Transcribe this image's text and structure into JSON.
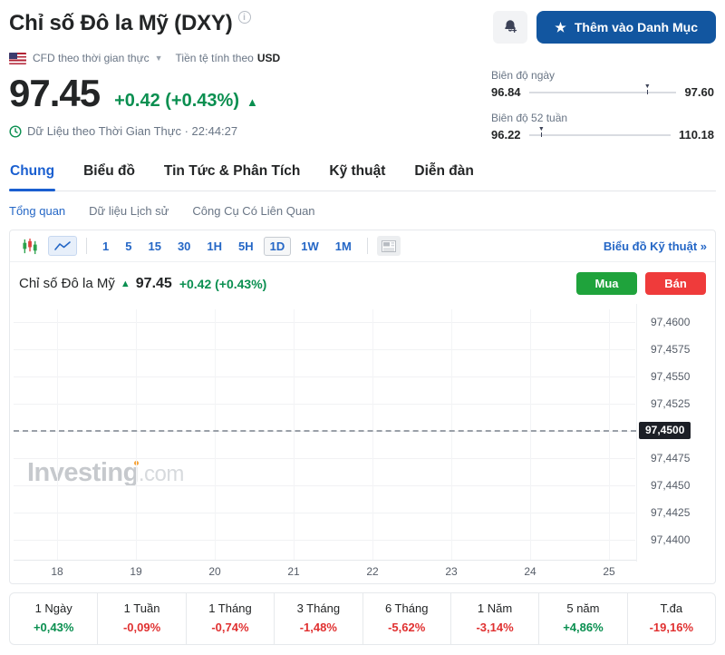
{
  "header": {
    "title": "Chỉ số Đô la Mỹ (DXY)",
    "info_icon_glyph": "ⓘ",
    "market_label": "CFD theo thời gian thực",
    "currency_prefix": "Tiền tệ tính theo",
    "currency": "USD",
    "price": "97.45",
    "change": "+0.42 (+0.43%)",
    "up_arrow": "▲",
    "realtime_label": "Dữ Liệu theo Thời Gian Thực · 22:44:27",
    "watchlist_button": "Thêm vào Danh Mục",
    "star_glyph": "★",
    "ranges": [
      {
        "label": "Biên độ ngày",
        "low": "96.84",
        "high": "97.60",
        "low_v": 96.84,
        "high_v": 97.6,
        "current_v": 97.45
      },
      {
        "label": "Biên độ 52 tuần",
        "low": "96.22",
        "high": "110.18",
        "low_v": 96.22,
        "high_v": 110.18,
        "current_v": 97.45
      }
    ],
    "colors": {
      "up": "#0a8f50",
      "down": "#e03131",
      "accent": "#1256a0",
      "link": "#2567c6"
    }
  },
  "tabs": [
    {
      "label": "Chung",
      "active": true
    },
    {
      "label": "Biểu đồ",
      "active": false
    },
    {
      "label": "Tin Tức & Phân Tích",
      "active": false
    },
    {
      "label": "Kỹ thuật",
      "active": false
    },
    {
      "label": "Diễn đàn",
      "active": false
    }
  ],
  "subtabs": [
    {
      "label": "Tổng quan",
      "active": true
    },
    {
      "label": "Dữ liệu Lịch sử",
      "active": false
    },
    {
      "label": "Công Cụ Có Liên Quan",
      "active": false
    }
  ],
  "chart_toolbar": {
    "intervals": [
      "1",
      "5",
      "15",
      "30",
      "1H",
      "5H",
      "1D",
      "1W",
      "1M"
    ],
    "selected_interval": "1D",
    "technical_link": "Biểu đồ Kỹ thuật »"
  },
  "chart_header": {
    "name": "Chỉ số Đô la Mỹ",
    "arrow": "▲",
    "price": "97.45",
    "change": "+0.42 (+0.43%)",
    "buy_label": "Mua",
    "sell_label": "Bán"
  },
  "watermark": {
    "main": "Investing",
    "suffix": ".com"
  },
  "chart_data": {
    "type": "line",
    "title": "Chỉ số Đô la Mỹ (DXY) intraday",
    "ylabel": "",
    "xlabel": "",
    "ylim": [
      97.44,
      97.46
    ],
    "grid": true,
    "y_ticks": [
      {
        "label": "97,4600",
        "value": 97.46
      },
      {
        "label": "97,4575",
        "value": 97.4575
      },
      {
        "label": "97,4550",
        "value": 97.455
      },
      {
        "label": "97,4525",
        "value": 97.4525
      },
      {
        "label": "97,4500",
        "value": 97.45
      },
      {
        "label": "97,4475",
        "value": 97.4475
      },
      {
        "label": "97,4450",
        "value": 97.445
      },
      {
        "label": "97,4425",
        "value": 97.4425
      },
      {
        "label": "97,4400",
        "value": 97.44
      }
    ],
    "x_ticks": [
      "18",
      "19",
      "20",
      "21",
      "22",
      "23",
      "24",
      "25"
    ],
    "last_price": {
      "label": "97,4500",
      "value": 97.45,
      "style": "dashed"
    }
  },
  "performance": [
    {
      "label": "1 Ngày",
      "value": "+0,43%",
      "direction": "up"
    },
    {
      "label": "1 Tuần",
      "value": "-0,09%",
      "direction": "down"
    },
    {
      "label": "1 Tháng",
      "value": "-0,74%",
      "direction": "down"
    },
    {
      "label": "3 Tháng",
      "value": "-1,48%",
      "direction": "down"
    },
    {
      "label": "6 Tháng",
      "value": "-5,62%",
      "direction": "down"
    },
    {
      "label": "1 Năm",
      "value": "-3,14%",
      "direction": "down"
    },
    {
      "label": "5 năm",
      "value": "+4,86%",
      "direction": "up"
    },
    {
      "label": "T.đa",
      "value": "-19,16%",
      "direction": "down"
    }
  ]
}
